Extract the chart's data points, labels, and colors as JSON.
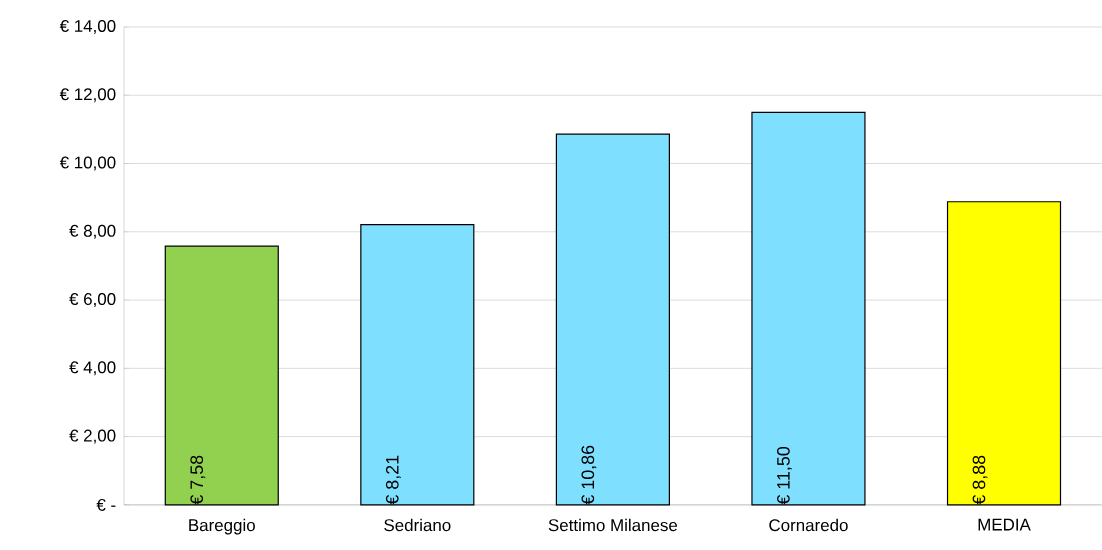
{
  "chart_data": {
    "type": "bar",
    "categories": [
      "Bareggio",
      "Sedriano",
      "Settimo Milanese",
      "Cornaredo",
      "MEDIA"
    ],
    "values": [
      7.58,
      8.21,
      10.86,
      11.5,
      8.88
    ],
    "colors": [
      "#92d050",
      "#7fdffe",
      "#7fdffe",
      "#7fdffe",
      "#ffff00"
    ],
    "value_labels": [
      "€ 7,58",
      "€ 8,21",
      "€ 10,86",
      "€ 11,50",
      "€ 8,88"
    ],
    "ylim": [
      0,
      14
    ],
    "yticks": [
      {
        "value": 0,
        "label": "€ -"
      },
      {
        "value": 2,
        "label": "€ 2,00"
      },
      {
        "value": 4,
        "label": "€ 4,00"
      },
      {
        "value": 6,
        "label": "€ 6,00"
      },
      {
        "value": 8,
        "label": "€ 8,00"
      },
      {
        "value": 10,
        "label": "€ 10,00"
      },
      {
        "value": 12,
        "label": "€ 12,00"
      },
      {
        "value": 14,
        "label": "€ 14,00"
      }
    ],
    "grid": "y"
  }
}
